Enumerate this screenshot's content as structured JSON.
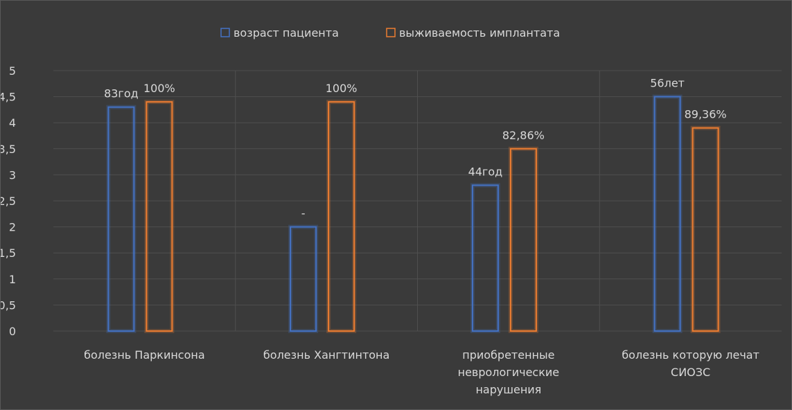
{
  "chart_data": {
    "type": "bar",
    "title": "",
    "xlabel": "",
    "ylabel": "",
    "ylim": [
      0,
      5
    ],
    "yticks": [
      "0",
      "0,5",
      "1",
      "1,5",
      "2",
      "2,5",
      "3",
      "3,5",
      "4",
      "4,5",
      "5"
    ],
    "categories": [
      [
        "болезнь Паркинсона"
      ],
      [
        "болезнь Хангтинтона"
      ],
      [
        "приобретенные",
        "неврологические",
        "нарушения"
      ],
      [
        "болезнь которую лечат",
        "СИОЗС"
      ]
    ],
    "series": [
      {
        "name": "возраст пациента",
        "color": "#4472c4",
        "values": [
          4.3,
          2.0,
          2.8,
          4.5
        ],
        "labels": [
          "83год",
          "-",
          "44год",
          "56лет"
        ]
      },
      {
        "name": "выживаемость имплантата",
        "color": "#ed7d31",
        "values": [
          4.4,
          4.4,
          3.5,
          3.9
        ],
        "labels": [
          "100%",
          "100%",
          "82,86%",
          "89,36%"
        ]
      }
    ],
    "grid": true,
    "legend": "top-center"
  }
}
